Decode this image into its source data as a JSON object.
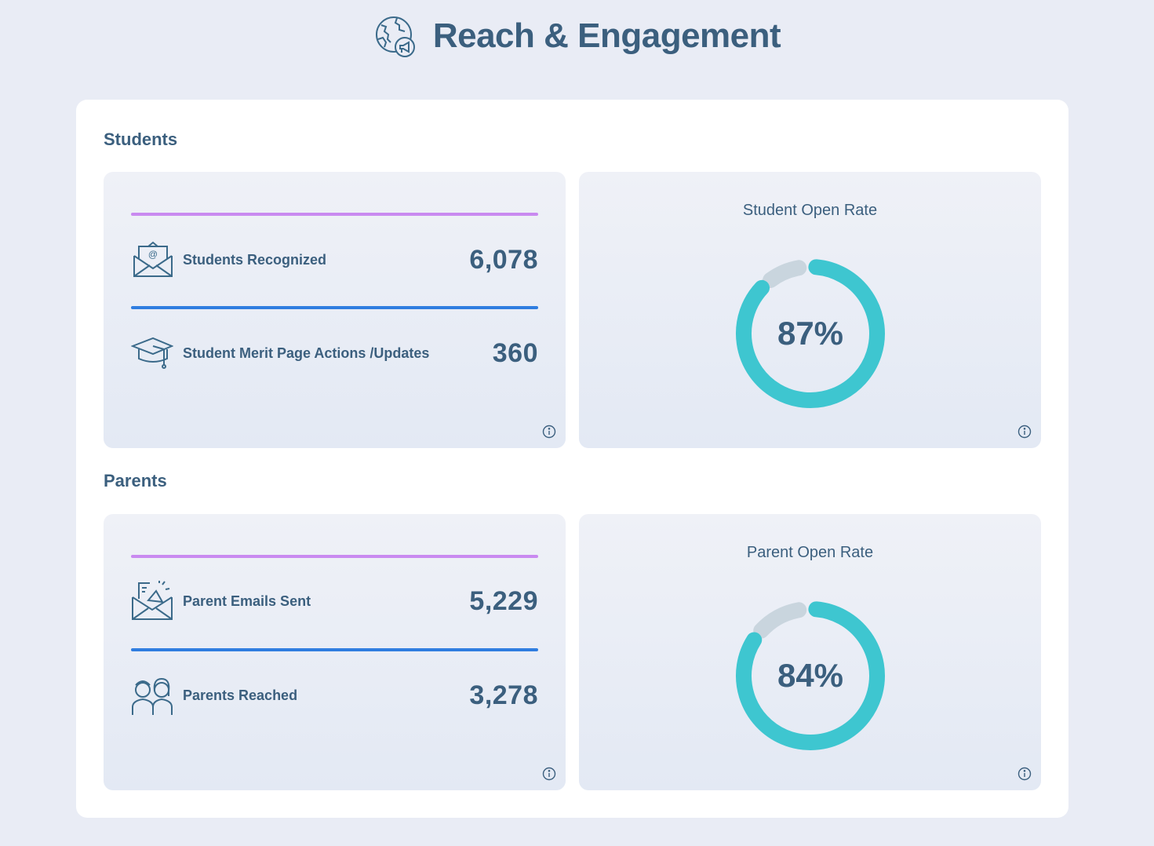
{
  "header": {
    "title": "Reach & Engagement",
    "icon": "globe-megaphone-icon"
  },
  "sections": [
    {
      "title": "Students",
      "stats": [
        {
          "label": "Students Recognized",
          "value": "6,078",
          "icon": "email-at-icon",
          "line_color": "#c98af0"
        },
        {
          "label": "Student Merit Page Actions /Updates",
          "value": "360",
          "icon": "graduation-cap-icon",
          "line_color": "#2f7de0"
        }
      ],
      "donut": {
        "title": "Student Open Rate",
        "value_label": "87%",
        "percent": 87
      }
    },
    {
      "title": "Parents",
      "stats": [
        {
          "label": "Parent Emails Sent",
          "value": "5,229",
          "icon": "email-megaphone-icon",
          "line_color": "#c98af0"
        },
        {
          "label": "Parents Reached",
          "value": "3,278",
          "icon": "parents-icon",
          "line_color": "#2f7de0"
        }
      ],
      "donut": {
        "title": "Parent Open Rate",
        "value_label": "84%",
        "percent": 84
      }
    }
  ],
  "colors": {
    "accent_teal": "#3ec6d0",
    "track_gray": "#c9d5de",
    "text": "#3b5f7e"
  }
}
